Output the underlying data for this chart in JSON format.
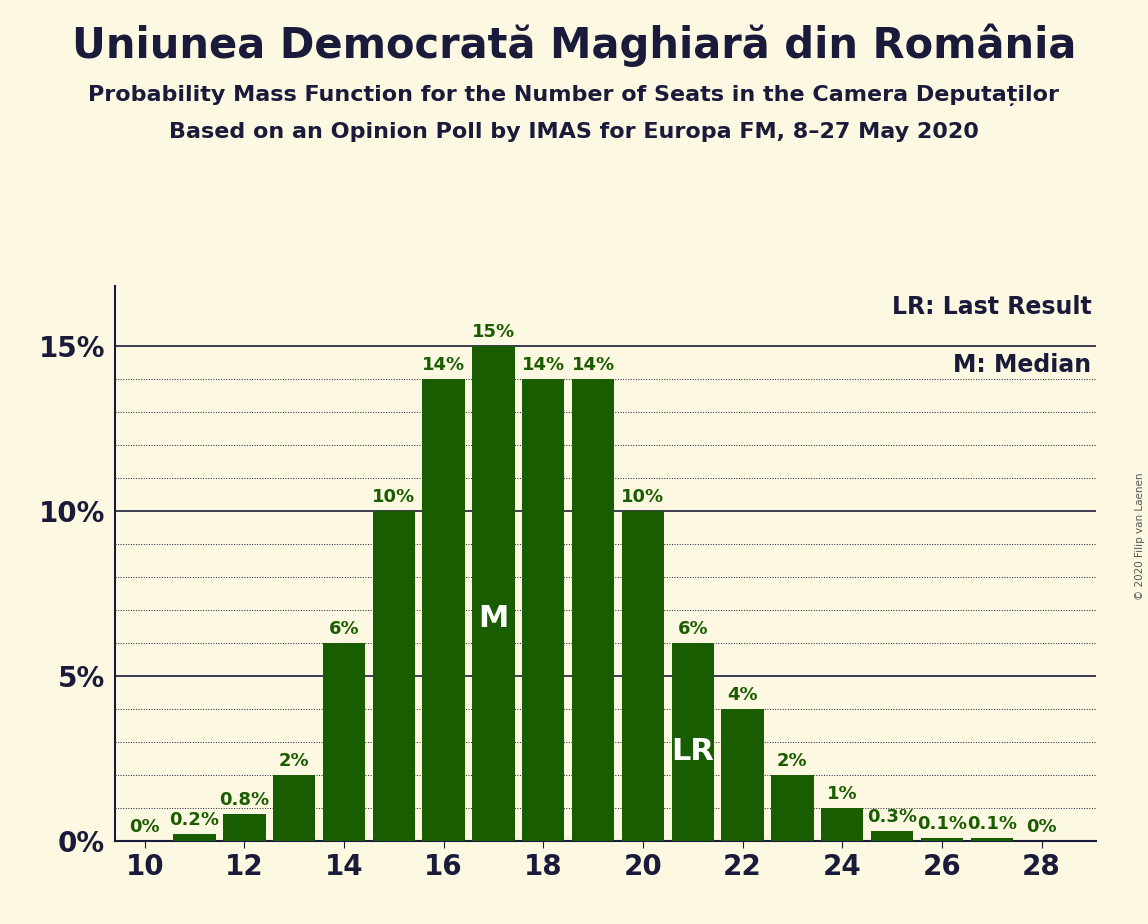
{
  "title": "Uniunea Democrată Maghiară din România",
  "subtitle1": "Probability Mass Function for the Number of Seats in the Camera Deputaților",
  "subtitle2": "Based on an Opinion Poll by IMAS for Europa FM, 8–27 May 2020",
  "copyright": "© 2020 Filip van Laenen",
  "seats": [
    10,
    11,
    12,
    13,
    14,
    15,
    16,
    17,
    18,
    19,
    20,
    21,
    22,
    23,
    24,
    25,
    26,
    27,
    28
  ],
  "probabilities": [
    0.0,
    0.2,
    0.8,
    2.0,
    6.0,
    10.0,
    14.0,
    15.0,
    14.0,
    14.0,
    10.0,
    6.0,
    4.0,
    2.0,
    1.0,
    0.3,
    0.1,
    0.1,
    0.0
  ],
  "bar_color": "#1a5c00",
  "background_color": "#fdf8e1",
  "label_color_dark": "#1a5c00",
  "text_color": "#1a1a3a",
  "label_color_white": "#ffffff",
  "median_seat": 17,
  "lr_seat": 21,
  "lr_label": "LR",
  "median_label": "M",
  "xlim": [
    9.4,
    29.1
  ],
  "ylim": [
    0,
    16.8
  ],
  "yticks": [
    0,
    5,
    10,
    15
  ],
  "ytick_labels": [
    "0%",
    "5%",
    "10%",
    "15%"
  ],
  "xticks": [
    10,
    12,
    14,
    16,
    18,
    20,
    22,
    24,
    26,
    28
  ],
  "legend_lr": "LR: Last Result",
  "legend_m": "M: Median",
  "title_fontsize": 30,
  "subtitle_fontsize": 16,
  "axis_tick_fontsize": 20,
  "bar_label_fontsize": 13,
  "legend_fontsize": 17,
  "inline_label_fontsize": 22,
  "solid_line_color": "#1a1a3a",
  "dotted_line_color": "#1a1a3a",
  "spine_color": "#1a1a3a"
}
